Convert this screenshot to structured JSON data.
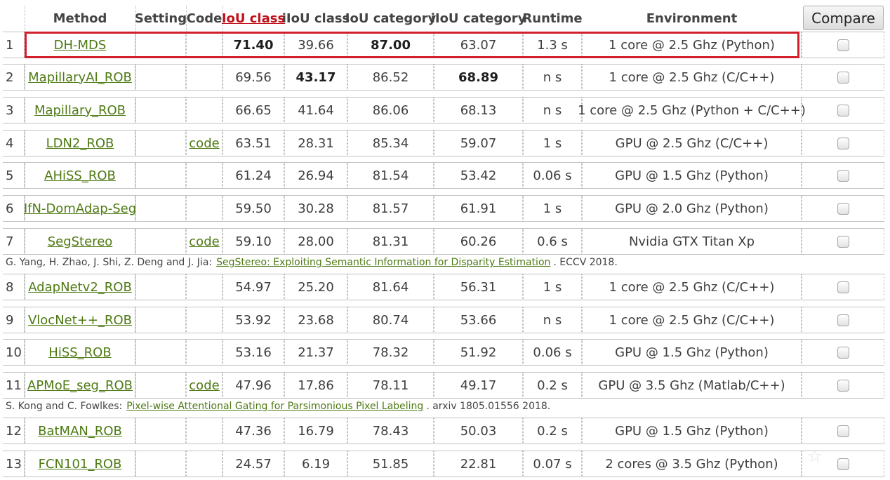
{
  "header": {
    "columns": {
      "method": "Method",
      "setting": "Setting",
      "code": "Code",
      "iou_class": "IoU class",
      "iiou_class": "iIoU class",
      "iou_category": "IoU category",
      "iiou_category": "iIoU category",
      "runtime": "Runtime",
      "environment": "Environment"
    },
    "sorted_column": "iou_class",
    "compare_label": "Compare"
  },
  "highlighted_rank": 1,
  "rows": [
    {
      "rank": "1",
      "method": "DH-MDS",
      "setting": "",
      "code": "",
      "iou_class": "71.40",
      "iiou_class": "39.66",
      "iou_category": "87.00",
      "iiou_category": "63.07",
      "runtime": "1.3 s",
      "environment": "1 core @ 2.5 Ghz (Python)",
      "bold": [
        "iou_class",
        "iou_category"
      ]
    },
    {
      "rank": "2",
      "method": "MapillaryAI_ROB",
      "setting": "",
      "code": "",
      "iou_class": "69.56",
      "iiou_class": "43.17",
      "iou_category": "86.52",
      "iiou_category": "68.89",
      "runtime": "n s",
      "environment": "1 core @ 2.5 Ghz (C/C++)",
      "bold": [
        "iiou_class",
        "iiou_category"
      ]
    },
    {
      "rank": "3",
      "method": "Mapillary_ROB",
      "setting": "",
      "code": "",
      "iou_class": "66.65",
      "iiou_class": "41.64",
      "iou_category": "86.06",
      "iiou_category": "68.13",
      "runtime": "n s",
      "environment": "1 core @ 2.5 Ghz (Python + C/C++)",
      "bold": []
    },
    {
      "rank": "4",
      "method": "LDN2_ROB",
      "setting": "",
      "code": "code",
      "iou_class": "63.51",
      "iiou_class": "28.31",
      "iou_category": "85.34",
      "iiou_category": "59.07",
      "runtime": "1 s",
      "environment": "GPU @ 2.5 Ghz (C/C++)",
      "bold": []
    },
    {
      "rank": "5",
      "method": "AHiSS_ROB",
      "setting": "",
      "code": "",
      "iou_class": "61.24",
      "iiou_class": "26.94",
      "iou_category": "81.54",
      "iiou_category": "53.42",
      "runtime": "0.06 s",
      "environment": "GPU @ 1.5 Ghz (Python)",
      "bold": []
    },
    {
      "rank": "6",
      "method": "IfN-DomAdap-Seg",
      "setting": "",
      "code": "",
      "iou_class": "59.50",
      "iiou_class": "30.28",
      "iou_category": "81.57",
      "iiou_category": "61.91",
      "runtime": "1 s",
      "environment": "GPU @ 2.0 Ghz (Python)",
      "bold": []
    },
    {
      "rank": "7",
      "method": "SegStereo",
      "setting": "",
      "code": "code",
      "iou_class": "59.10",
      "iiou_class": "28.00",
      "iou_category": "81.31",
      "iiou_category": "60.26",
      "runtime": "0.6 s",
      "environment": "Nvidia GTX Titan Xp",
      "bold": [],
      "publication": {
        "authors": "G. Yang, H. Zhao, J. Shi, Z. Deng and J. Jia:",
        "title": "SegStereo: Exploiting Semantic Information for Disparity Estimation",
        "venue": ". ECCV 2018."
      }
    },
    {
      "rank": "8",
      "method": "AdapNetv2_ROB",
      "setting": "",
      "code": "",
      "iou_class": "54.97",
      "iiou_class": "25.20",
      "iou_category": "81.64",
      "iiou_category": "56.31",
      "runtime": "1 s",
      "environment": "1 core @ 2.5 Ghz (C/C++)",
      "bold": []
    },
    {
      "rank": "9",
      "method": "VlocNet++_ROB",
      "setting": "",
      "code": "",
      "iou_class": "53.92",
      "iiou_class": "23.68",
      "iou_category": "80.74",
      "iiou_category": "53.66",
      "runtime": "n s",
      "environment": "1 core @ 2.5 Ghz (C/C++)",
      "bold": []
    },
    {
      "rank": "10",
      "method": "HiSS_ROB",
      "setting": "",
      "code": "",
      "iou_class": "53.16",
      "iiou_class": "21.37",
      "iou_category": "78.32",
      "iiou_category": "51.92",
      "runtime": "0.06 s",
      "environment": "GPU @ 1.5 Ghz (Python)",
      "bold": []
    },
    {
      "rank": "11",
      "method": "APMoE_seg_ROB",
      "setting": "",
      "code": "code",
      "iou_class": "47.96",
      "iiou_class": "17.86",
      "iou_category": "78.11",
      "iiou_category": "49.17",
      "runtime": "0.2 s",
      "environment": "GPU @ 3.5 Ghz (Matlab/C++)",
      "bold": [],
      "publication": {
        "authors": "S. Kong and C. Fowlkes:",
        "title": "Pixel-wise Attentional Gating for Parsimonious Pixel Labeling",
        "venue": ". arxiv 1805.01556 2018."
      }
    },
    {
      "rank": "12",
      "method": "BatMAN_ROB",
      "setting": "",
      "code": "",
      "iou_class": "47.36",
      "iiou_class": "16.79",
      "iou_category": "78.43",
      "iiou_category": "50.03",
      "runtime": "0.2 s",
      "environment": "GPU @ 1.5 Ghz (Python)",
      "bold": []
    },
    {
      "rank": "13",
      "method": "FCN101_ROB",
      "setting": "",
      "code": "",
      "iou_class": "24.57",
      "iiou_class": "6.19",
      "iou_category": "51.85",
      "iiou_category": "22.81",
      "runtime": "0.07 s",
      "environment": "2 cores @ 3.5 Ghz (Python)",
      "bold": []
    }
  ],
  "watermark": {
    "icon": "star-icon"
  },
  "colors": {
    "link": "#4e7a13",
    "sorted_header": "#c0111b",
    "highlight_border": "#d11f2c"
  }
}
